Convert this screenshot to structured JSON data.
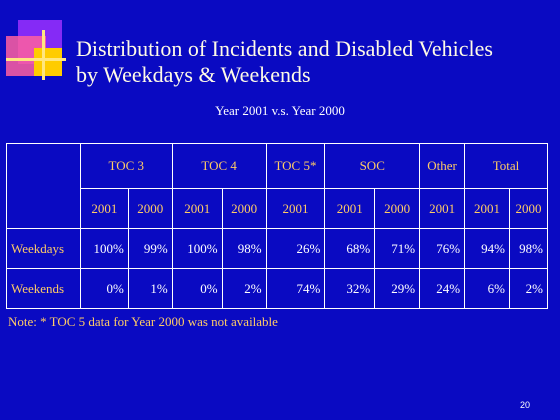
{
  "header": {
    "title_lines": [
      "Distribution of Incidents and Disabled Vehicles",
      "by Weekdays & Weekends"
    ],
    "subtitle": "Year 2001 v.s. Year 2000"
  },
  "table": {
    "groups": [
      "TOC 3",
      "TOC 4",
      "TOC 5*",
      "SOC",
      "Other",
      "Total"
    ],
    "years": [
      "2001",
      "2000",
      "2001",
      "2000",
      "2001",
      "2001",
      "2000",
      "2001",
      "2001",
      "2000"
    ],
    "rows": [
      [
        "Weekdays",
        "100%",
        "99%",
        "100%",
        "98%",
        "26%",
        "68%",
        "71%",
        "76%",
        "94%",
        "98%"
      ],
      [
        "Weekends",
        "0%",
        "1%",
        "0%",
        "2%",
        "74%",
        "32%",
        "29%",
        "24%",
        "6%",
        "2%"
      ]
    ]
  },
  "note": "Note: * TOC 5 data for Year 2000 was not available",
  "page_number": "20"
}
